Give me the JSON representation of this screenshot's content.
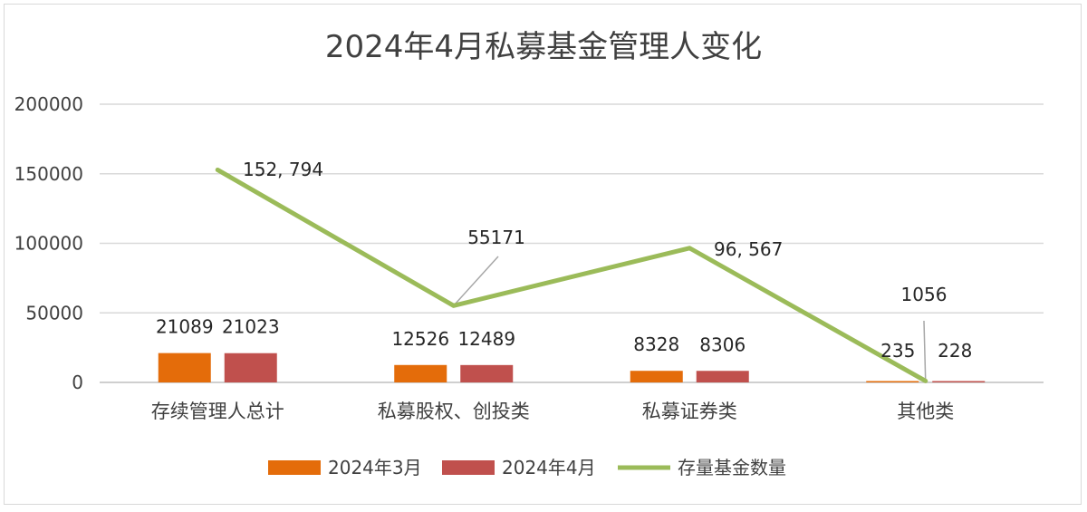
{
  "chart_data": {
    "type": "bar",
    "title": "2024年4月私募基金管理人变化",
    "categories": [
      "存续管理人总计",
      "私募股权、创投类",
      "私募证券类",
      "其他类"
    ],
    "series": [
      {
        "name": "2024年3月",
        "type": "bar",
        "values": [
          21089,
          12526,
          8328,
          235
        ],
        "color": "#E46C0A",
        "labels": [
          "21089",
          "12526",
          "8328",
          "235"
        ]
      },
      {
        "name": "2024年4月",
        "type": "bar",
        "values": [
          21023,
          12489,
          8306,
          228
        ],
        "color": "#C0504D",
        "labels": [
          "21023",
          "12489",
          "8306",
          "228"
        ]
      },
      {
        "name": "存量基金数量",
        "type": "line",
        "values": [
          152794,
          55171,
          96567,
          1056
        ],
        "color": "#9BBB59",
        "labels": [
          "152, 794",
          "55171",
          "96, 567",
          "1056"
        ]
      }
    ],
    "ylim": [
      0,
      200000
    ],
    "yticks": [
      "0",
      "50000",
      "100000",
      "150000",
      "200000"
    ],
    "grid": true,
    "legend": "bottom"
  }
}
